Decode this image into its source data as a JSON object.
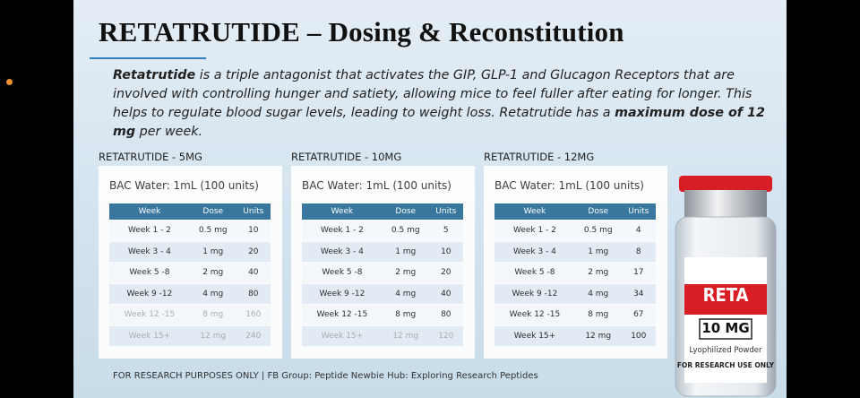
{
  "header": {
    "title": "RETATRUTIDE – Dosing & Reconstitution"
  },
  "intro": {
    "lead": "Retatrutide",
    "text": " is a triple antagonist that activates the GIP, GLP-1 and Glucagon Receptors that are involved with controlling hunger and satiety, allowing mice to feel fuller after eating for longer. This helps to regulate blood sugar levels, leading to weight loss. Retatrutide has a ",
    "emphasis": "maximum dose of 12 mg",
    "tail": " per week."
  },
  "tables": [
    {
      "title": "RETATRUTIDE - 5MG",
      "bac": "BAC Water: 1mL (100 units)",
      "columns": [
        "Week",
        "Dose",
        "Units"
      ],
      "rows": [
        [
          "Week 1 - 2",
          "0.5 mg",
          10
        ],
        [
          "Week 3 - 4",
          "1 mg",
          20
        ],
        [
          "Week 5 -8",
          "2 mg",
          40
        ],
        [
          "Week 9 -12",
          "4 mg",
          80
        ],
        [
          "Week 12 -15",
          "8 mg",
          160
        ],
        [
          "Week 15+",
          "12 mg",
          240
        ]
      ]
    },
    {
      "title": "RETATRUTIDE - 10MG",
      "bac": "BAC Water: 1mL (100 units)",
      "columns": [
        "Week",
        "Dose",
        "Units"
      ],
      "rows": [
        [
          "Week 1 - 2",
          "0.5 mg",
          5
        ],
        [
          "Week 3 - 4",
          "1 mg",
          10
        ],
        [
          "Week 5 -8",
          "2 mg",
          20
        ],
        [
          "Week 9 -12",
          "4 mg",
          40
        ],
        [
          "Week 12 -15",
          "8 mg",
          80
        ],
        [
          "Week 15+",
          "12 mg",
          120
        ]
      ]
    },
    {
      "title": "RETATRUTIDE - 12MG",
      "bac": "BAC Water: 1mL (100 units)",
      "columns": [
        "Week",
        "Dose",
        "Units"
      ],
      "rows": [
        [
          "Week 1 - 2",
          "0.5 mg",
          4
        ],
        [
          "Week 3 - 4",
          "1 mg",
          8
        ],
        [
          "Week 5 -8",
          "2 mg",
          17
        ],
        [
          "Week 9 -12",
          "4 mg",
          34
        ],
        [
          "Week 12 -15",
          "8 mg",
          67
        ],
        [
          "Week 15+",
          "12 mg",
          100
        ]
      ]
    }
  ],
  "vial": {
    "brand": "RETA",
    "strength": "10 MG",
    "form": "Lyophilized Powder",
    "notice": "FOR RESEARCH USE ONLY"
  },
  "footer": "FOR RESEARCH PURPOSES ONLY | FB Group: Peptide Newbie Hub: Exploring Research Peptides"
}
